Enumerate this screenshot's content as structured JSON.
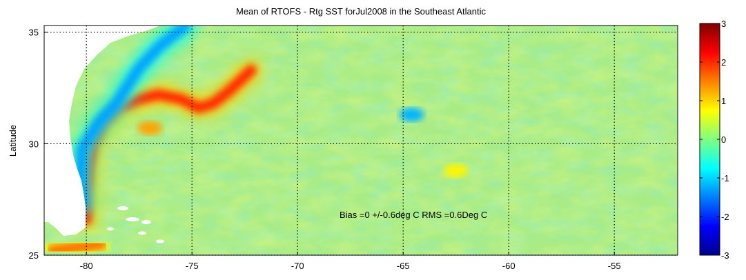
{
  "chart_data": {
    "type": "heatmap",
    "title": "Mean of RTOFS - Rtg SST forJul2008 in the Southeast Atlantic",
    "xlabel": "",
    "ylabel": "Latitude",
    "xlim": [
      -82,
      -52
    ],
    "ylim": [
      25,
      35.3
    ],
    "x_ticks": [
      -80,
      -75,
      -70,
      -65,
      -60,
      -55
    ],
    "x_tick_labels": [
      "-80",
      "-75",
      "-70",
      "-65",
      "-60",
      "-55"
    ],
    "y_ticks": [
      25,
      30,
      35
    ],
    "y_tick_labels": [
      "25",
      "30",
      "35"
    ],
    "grid": true,
    "grid_style": "dotted",
    "annotation": {
      "text": "Bias =0 +/-0.6deg C   RMS =0.6Deg C",
      "x": -68,
      "y": 26.9
    },
    "colorbar": {
      "min": -3,
      "max": 3,
      "ticks": [
        -3,
        -2,
        -1,
        0,
        1,
        2,
        3
      ],
      "tick_labels": [
        "-3",
        "-2",
        "-1",
        "0",
        "1",
        "2",
        "3"
      ],
      "colormap": "jet"
    },
    "features": [
      {
        "name": "gulf-stream-core",
        "value": 2.0,
        "points": [
          [
            -80.0,
            26.6
          ],
          [
            -80.0,
            27.8
          ],
          [
            -79.9,
            29.0
          ],
          [
            -79.7,
            30.0
          ],
          [
            -79.2,
            30.9
          ],
          [
            -78.5,
            31.6
          ],
          [
            -77.5,
            32.0
          ],
          [
            -76.6,
            32.2
          ],
          [
            -75.5,
            32.0
          ],
          [
            -74.7,
            31.6
          ],
          [
            -74.0,
            31.8
          ],
          [
            -73.2,
            32.4
          ],
          [
            -72.2,
            33.3
          ]
        ]
      },
      {
        "name": "warm-eddy",
        "value": 1.3,
        "points": [
          [
            -77.0,
            30.7
          ]
        ]
      },
      {
        "name": "shelf-cold-band",
        "value": -1.3,
        "points": [
          [
            -80.2,
            27.3
          ],
          [
            -80.3,
            28.3
          ],
          [
            -80.2,
            29.8
          ],
          [
            -79.4,
            31.0
          ],
          [
            -78.6,
            31.8
          ],
          [
            -77.5,
            33.4
          ],
          [
            -76.5,
            34.4
          ],
          [
            -75.3,
            35.3
          ]
        ]
      },
      {
        "name": "warm-patch-southwest",
        "value": 1.6,
        "points": [
          [
            -81.6,
            25.2
          ],
          [
            -79.3,
            25.5
          ]
        ]
      },
      {
        "name": "warm-patch-east",
        "value": 0.8,
        "points": [
          [
            -62.5,
            28.8
          ]
        ]
      },
      {
        "name": "cold-spot",
        "value": -1.2,
        "points": [
          [
            -64.6,
            31.3
          ]
        ]
      }
    ]
  }
}
